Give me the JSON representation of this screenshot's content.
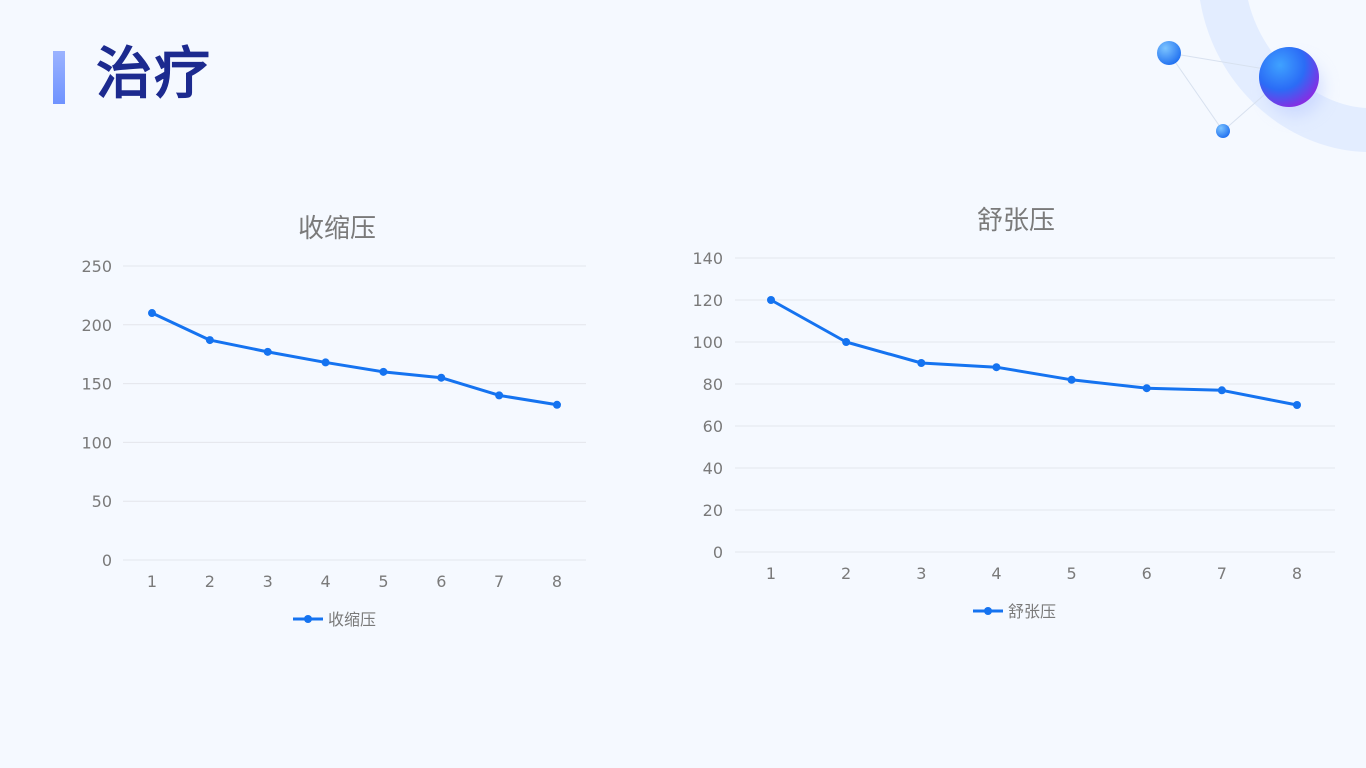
{
  "page": {
    "title": "治疗"
  },
  "colors": {
    "series": "#1573f0",
    "title": "#1c2a8f",
    "axis_text": "#7a7a7a",
    "grid": "#e3e6ec"
  },
  "chart_data": [
    {
      "type": "line",
      "title": "收缩压",
      "x": [
        1,
        2,
        3,
        4,
        5,
        6,
        7,
        8
      ],
      "series": [
        {
          "name": "收缩压",
          "values": [
            210,
            187,
            177,
            168,
            160,
            155,
            140,
            132
          ]
        }
      ],
      "ylim": [
        0,
        250
      ],
      "yticks": [
        0,
        50,
        100,
        150,
        200,
        250
      ],
      "grid": true,
      "legend": "bottom"
    },
    {
      "type": "line",
      "title": "舒张压",
      "x": [
        1,
        2,
        3,
        4,
        5,
        6,
        7,
        8
      ],
      "series": [
        {
          "name": "舒张压",
          "values": [
            120,
            100,
            90,
            88,
            82,
            78,
            77,
            70
          ]
        }
      ],
      "ylim": [
        0,
        140
      ],
      "yticks": [
        0,
        20,
        40,
        60,
        80,
        100,
        120,
        140
      ],
      "grid": true,
      "legend": "bottom"
    }
  ]
}
